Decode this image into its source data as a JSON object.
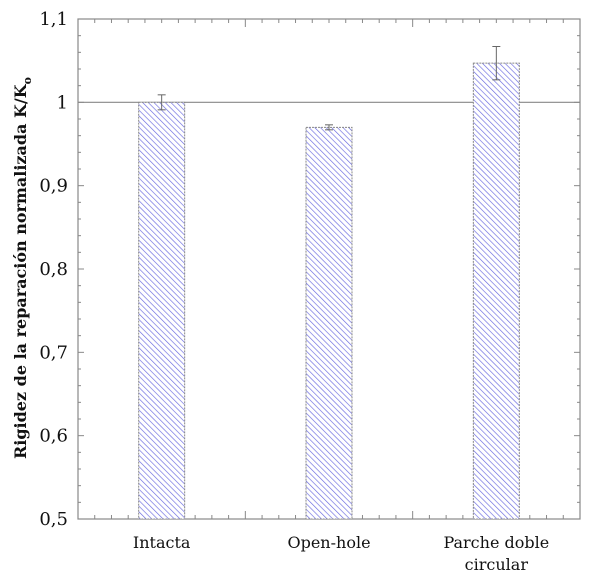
{
  "chart_data": {
    "type": "bar",
    "categories": [
      "Intacta",
      "Open-hole",
      "Parche doble circular"
    ],
    "category_lines": [
      [
        "Intacta"
      ],
      [
        "Open-hole"
      ],
      [
        "Parche doble",
        "circular"
      ]
    ],
    "values": [
      1.0,
      0.97,
      1.047
    ],
    "errors": [
      0.009,
      0.003,
      0.02
    ],
    "reference_line": 1.0,
    "title": "",
    "xlabel": "",
    "ylabel": "Rigidez de la reparación normalizada K/K",
    "ylabel_subscript": "o",
    "ylim": [
      0.5,
      1.1
    ],
    "yticks": [
      0.5,
      0.6,
      0.7,
      0.8,
      0.9,
      1.0,
      1.1
    ],
    "ytick_labels": [
      "0,5",
      "0,6",
      "0,7",
      "0,8",
      "0,9",
      "1",
      "1,1"
    ],
    "grid": false,
    "bar_fill": "diagonal hatch",
    "colors": {
      "hatch": "#5555dd",
      "bar_border": "#888888",
      "axis": "#888888",
      "error_bar": "#666666"
    }
  }
}
